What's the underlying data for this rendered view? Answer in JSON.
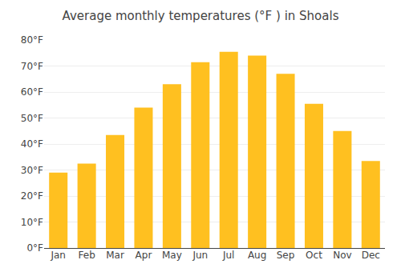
{
  "chart_data": {
    "type": "bar",
    "title": "Average monthly temperatures (°F ) in Shoals",
    "categories": [
      "Jan",
      "Feb",
      "Mar",
      "Apr",
      "May",
      "Jun",
      "Jul",
      "Aug",
      "Sep",
      "Oct",
      "Nov",
      "Dec"
    ],
    "values": [
      29,
      32.5,
      43.5,
      54,
      63,
      71.5,
      75.5,
      74,
      67,
      55.5,
      45,
      33.5
    ],
    "color": "#FFC020",
    "ylim": [
      0,
      80
    ],
    "yticks": [
      {
        "value": 0,
        "label": "0°F"
      },
      {
        "value": 10,
        "label": "10°F"
      },
      {
        "value": 20,
        "label": "20°F"
      },
      {
        "value": 30,
        "label": "30°F"
      },
      {
        "value": 40,
        "label": "40°F"
      },
      {
        "value": 50,
        "label": "50°F"
      },
      {
        "value": 60,
        "label": "60°F"
      },
      {
        "value": 70,
        "label": "70°F"
      },
      {
        "value": 80,
        "label": "80°F"
      }
    ],
    "grid": true
  }
}
